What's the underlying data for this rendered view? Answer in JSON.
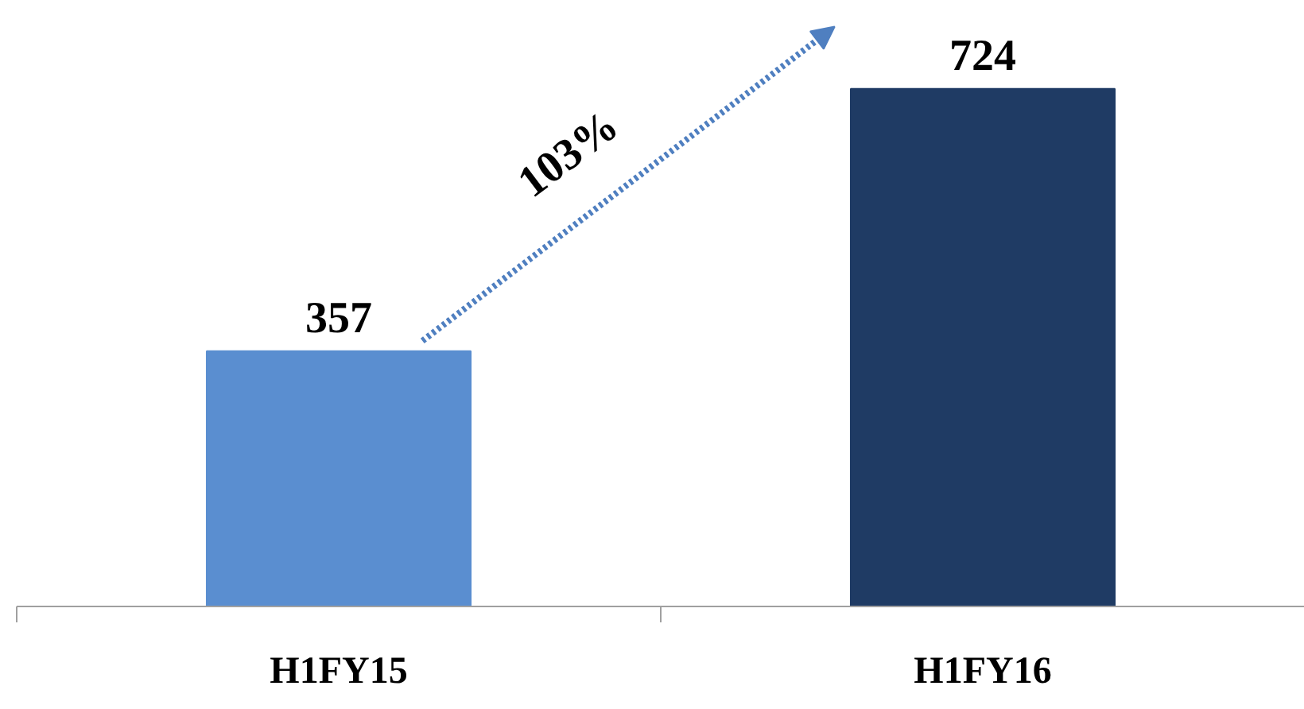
{
  "chart_data": {
    "type": "bar",
    "categories": [
      "H1FY15",
      "H1FY16"
    ],
    "values": [
      357,
      724
    ],
    "colors": [
      "#5a8ed0",
      "#1f3b64"
    ],
    "data_labels": true,
    "annotations": [
      "103%"
    ]
  }
}
